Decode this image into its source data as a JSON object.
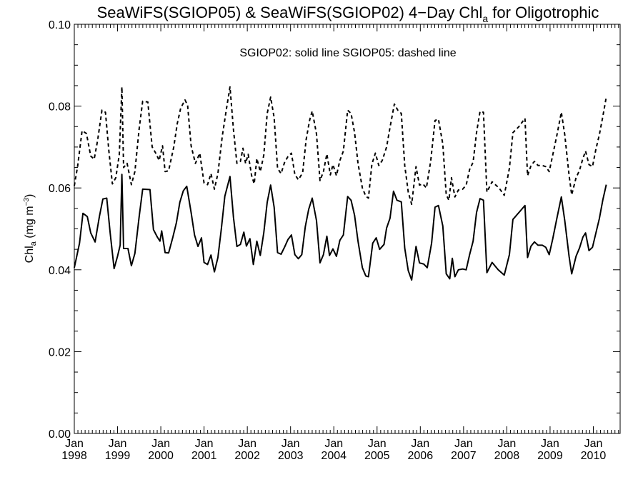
{
  "chart_data": {
    "type": "line",
    "title_main": "SeaWiFS(SGIOP05) & SeaWiFS(SGIOP02) 4−Day Chl",
    "title_sub": "a",
    "title_tail": " for Oligotrophic",
    "ylabel_main": "Chl",
    "ylabel_sub": "a",
    "ylabel_units": " (mg m",
    "ylabel_sup": "−3",
    "ylabel_close": ")",
    "annotation": "SGIOP02: solid line   SGIOP05: dashed line",
    "x_month_label": "Jan",
    "x_year_labels": [
      "1998",
      "1999",
      "2000",
      "2001",
      "2002",
      "2003",
      "2004",
      "2005",
      "2006",
      "2007",
      "2008",
      "2009",
      "2010"
    ],
    "y_tick_labels": [
      "0.00",
      "0.02",
      "0.04",
      "0.06",
      "0.08",
      "0.10"
    ],
    "xlim": [
      1998.0,
      2010.62
    ],
    "ylim": [
      0.0,
      0.1
    ],
    "series": [
      {
        "style": "solid",
        "points": [
          [
            1998.0,
            0.0405
          ],
          [
            1998.12,
            0.0465
          ],
          [
            1998.2,
            0.0538
          ],
          [
            1998.3,
            0.053
          ],
          [
            1998.38,
            0.049
          ],
          [
            1998.48,
            0.0468
          ],
          [
            1998.58,
            0.053
          ],
          [
            1998.66,
            0.0573
          ],
          [
            1998.75,
            0.0575
          ],
          [
            1998.83,
            0.049
          ],
          [
            1998.92,
            0.0403
          ],
          [
            1999.0,
            0.0433
          ],
          [
            1999.06,
            0.046
          ],
          [
            1999.1,
            0.0633
          ],
          [
            1999.14,
            0.0452
          ],
          [
            1999.24,
            0.0452
          ],
          [
            1999.32,
            0.041
          ],
          [
            1999.4,
            0.044
          ],
          [
            1999.5,
            0.053
          ],
          [
            1999.58,
            0.0597
          ],
          [
            1999.75,
            0.0596
          ],
          [
            1999.83,
            0.0498
          ],
          [
            1999.92,
            0.048
          ],
          [
            1999.98,
            0.047
          ],
          [
            2000.02,
            0.0495
          ],
          [
            2000.1,
            0.0442
          ],
          [
            2000.18,
            0.0441
          ],
          [
            2000.28,
            0.048
          ],
          [
            2000.36,
            0.0515
          ],
          [
            2000.44,
            0.0565
          ],
          [
            2000.52,
            0.0593
          ],
          [
            2000.6,
            0.0604
          ],
          [
            2000.7,
            0.054
          ],
          [
            2000.78,
            0.0485
          ],
          [
            2000.86,
            0.0457
          ],
          [
            2000.94,
            0.0478
          ],
          [
            2001.0,
            0.0418
          ],
          [
            2001.08,
            0.0413
          ],
          [
            2001.16,
            0.0436
          ],
          [
            2001.24,
            0.0395
          ],
          [
            2001.32,
            0.043
          ],
          [
            2001.4,
            0.05
          ],
          [
            2001.48,
            0.058
          ],
          [
            2001.6,
            0.0628
          ],
          [
            2001.68,
            0.0528
          ],
          [
            2001.76,
            0.0457
          ],
          [
            2001.84,
            0.0462
          ],
          [
            2001.92,
            0.0492
          ],
          [
            2001.98,
            0.0458
          ],
          [
            2002.06,
            0.0476
          ],
          [
            2002.14,
            0.0413
          ],
          [
            2002.22,
            0.047
          ],
          [
            2002.3,
            0.0435
          ],
          [
            2002.38,
            0.049
          ],
          [
            2002.46,
            0.0565
          ],
          [
            2002.54,
            0.0607
          ],
          [
            2002.62,
            0.0553
          ],
          [
            2002.7,
            0.0442
          ],
          [
            2002.78,
            0.0438
          ],
          [
            2002.86,
            0.0455
          ],
          [
            2002.94,
            0.0474
          ],
          [
            2003.02,
            0.0485
          ],
          [
            2003.1,
            0.0437
          ],
          [
            2003.18,
            0.0427
          ],
          [
            2003.26,
            0.0437
          ],
          [
            2003.34,
            0.0505
          ],
          [
            2003.42,
            0.0548
          ],
          [
            2003.5,
            0.0575
          ],
          [
            2003.6,
            0.052
          ],
          [
            2003.68,
            0.0417
          ],
          [
            2003.76,
            0.0437
          ],
          [
            2003.84,
            0.0482
          ],
          [
            2003.9,
            0.0435
          ],
          [
            2003.98,
            0.0451
          ],
          [
            2004.06,
            0.0433
          ],
          [
            2004.14,
            0.0472
          ],
          [
            2004.22,
            0.0485
          ],
          [
            2004.32,
            0.0579
          ],
          [
            2004.4,
            0.057
          ],
          [
            2004.48,
            0.0533
          ],
          [
            2004.56,
            0.047
          ],
          [
            2004.66,
            0.0405
          ],
          [
            2004.74,
            0.0385
          ],
          [
            2004.8,
            0.0383
          ],
          [
            2004.9,
            0.0465
          ],
          [
            2004.98,
            0.0478
          ],
          [
            2005.06,
            0.045
          ],
          [
            2005.16,
            0.0462
          ],
          [
            2005.22,
            0.0502
          ],
          [
            2005.3,
            0.0526
          ],
          [
            2005.38,
            0.0592
          ],
          [
            2005.46,
            0.057
          ],
          [
            2005.56,
            0.0566
          ],
          [
            2005.64,
            0.0453
          ],
          [
            2005.72,
            0.0398
          ],
          [
            2005.8,
            0.0375
          ],
          [
            2005.9,
            0.0457
          ],
          [
            2005.98,
            0.0417
          ],
          [
            2006.08,
            0.0414
          ],
          [
            2006.16,
            0.0405
          ],
          [
            2006.26,
            0.0465
          ],
          [
            2006.34,
            0.0553
          ],
          [
            2006.42,
            0.0557
          ],
          [
            2006.52,
            0.0507
          ],
          [
            2006.6,
            0.039
          ],
          [
            2006.68,
            0.0378
          ],
          [
            2006.74,
            0.0428
          ],
          [
            2006.8,
            0.0383
          ],
          [
            2006.88,
            0.04
          ],
          [
            2006.98,
            0.0402
          ],
          [
            2007.06,
            0.04
          ],
          [
            2007.14,
            0.0437
          ],
          [
            2007.22,
            0.047
          ],
          [
            2007.3,
            0.054
          ],
          [
            2007.38,
            0.0574
          ],
          [
            2007.46,
            0.057
          ],
          [
            2007.54,
            0.0393
          ],
          [
            2007.66,
            0.0418
          ],
          [
            2007.8,
            0.04
          ],
          [
            2007.94,
            0.0387
          ],
          [
            2008.06,
            0.0437
          ],
          [
            2008.14,
            0.0523
          ],
          [
            2008.28,
            0.054
          ],
          [
            2008.42,
            0.0557
          ],
          [
            2008.48,
            0.043
          ],
          [
            2008.56,
            0.0458
          ],
          [
            2008.64,
            0.0468
          ],
          [
            2008.72,
            0.046
          ],
          [
            2008.82,
            0.046
          ],
          [
            2008.9,
            0.0455
          ],
          [
            2008.98,
            0.0437
          ],
          [
            2009.06,
            0.0475
          ],
          [
            2009.16,
            0.0527
          ],
          [
            2009.26,
            0.0578
          ],
          [
            2009.34,
            0.052
          ],
          [
            2009.44,
            0.0432
          ],
          [
            2009.5,
            0.039
          ],
          [
            2009.6,
            0.0433
          ],
          [
            2009.68,
            0.0453
          ],
          [
            2009.76,
            0.048
          ],
          [
            2009.82,
            0.049
          ],
          [
            2009.9,
            0.0447
          ],
          [
            2009.98,
            0.0455
          ],
          [
            2010.06,
            0.049
          ],
          [
            2010.14,
            0.0525
          ],
          [
            2010.22,
            0.0571
          ],
          [
            2010.3,
            0.0608
          ]
        ]
      },
      {
        "style": "dashed",
        "points": [
          [
            1998.0,
            0.0605
          ],
          [
            1998.08,
            0.0655
          ],
          [
            1998.18,
            0.074
          ],
          [
            1998.28,
            0.0733
          ],
          [
            1998.38,
            0.0678
          ],
          [
            1998.46,
            0.067
          ],
          [
            1998.54,
            0.0717
          ],
          [
            1998.64,
            0.079
          ],
          [
            1998.72,
            0.0785
          ],
          [
            1998.8,
            0.069
          ],
          [
            1998.88,
            0.061
          ],
          [
            1998.96,
            0.0625
          ],
          [
            1999.04,
            0.0682
          ],
          [
            1999.1,
            0.0847
          ],
          [
            1999.14,
            0.065
          ],
          [
            1999.22,
            0.066
          ],
          [
            1999.32,
            0.0608
          ],
          [
            1999.4,
            0.064
          ],
          [
            1999.5,
            0.0745
          ],
          [
            1999.58,
            0.0812
          ],
          [
            1999.7,
            0.081
          ],
          [
            1999.8,
            0.07
          ],
          [
            1999.9,
            0.0682
          ],
          [
            1999.96,
            0.0667
          ],
          [
            2000.04,
            0.0703
          ],
          [
            2000.1,
            0.064
          ],
          [
            2000.18,
            0.0642
          ],
          [
            2000.3,
            0.07
          ],
          [
            2000.38,
            0.0757
          ],
          [
            2000.46,
            0.0795
          ],
          [
            2000.56,
            0.0815
          ],
          [
            2000.62,
            0.0802
          ],
          [
            2000.7,
            0.0703
          ],
          [
            2000.8,
            0.066
          ],
          [
            2000.9,
            0.0685
          ],
          [
            2001.0,
            0.0612
          ],
          [
            2001.08,
            0.0608
          ],
          [
            2001.16,
            0.0635
          ],
          [
            2001.24,
            0.0597
          ],
          [
            2001.32,
            0.0635
          ],
          [
            2001.42,
            0.0725
          ],
          [
            2001.52,
            0.0795
          ],
          [
            2001.6,
            0.0847
          ],
          [
            2001.68,
            0.0742
          ],
          [
            2001.76,
            0.066
          ],
          [
            2001.84,
            0.0665
          ],
          [
            2001.9,
            0.0697
          ],
          [
            2001.96,
            0.066
          ],
          [
            2002.02,
            0.0682
          ],
          [
            2002.1,
            0.063
          ],
          [
            2002.16,
            0.061
          ],
          [
            2002.22,
            0.0672
          ],
          [
            2002.3,
            0.064
          ],
          [
            2002.38,
            0.068
          ],
          [
            2002.46,
            0.0782
          ],
          [
            2002.54,
            0.0822
          ],
          [
            2002.62,
            0.0772
          ],
          [
            2002.7,
            0.0648
          ],
          [
            2002.78,
            0.0635
          ],
          [
            2002.86,
            0.0662
          ],
          [
            2002.94,
            0.0677
          ],
          [
            2003.02,
            0.0685
          ],
          [
            2003.1,
            0.0633
          ],
          [
            2003.18,
            0.062
          ],
          [
            2003.28,
            0.0637
          ],
          [
            2003.36,
            0.0718
          ],
          [
            2003.44,
            0.0765
          ],
          [
            2003.5,
            0.0788
          ],
          [
            2003.6,
            0.0732
          ],
          [
            2003.68,
            0.0618
          ],
          [
            2003.76,
            0.064
          ],
          [
            2003.84,
            0.0683
          ],
          [
            2003.92,
            0.0632
          ],
          [
            2003.98,
            0.0657
          ],
          [
            2004.06,
            0.063
          ],
          [
            2004.14,
            0.0667
          ],
          [
            2004.22,
            0.069
          ],
          [
            2004.32,
            0.079
          ],
          [
            2004.4,
            0.0782
          ],
          [
            2004.48,
            0.0735
          ],
          [
            2004.56,
            0.066
          ],
          [
            2004.66,
            0.06
          ],
          [
            2004.74,
            0.058
          ],
          [
            2004.8,
            0.0575
          ],
          [
            2004.88,
            0.0658
          ],
          [
            2004.96,
            0.0685
          ],
          [
            2005.04,
            0.0655
          ],
          [
            2005.12,
            0.0667
          ],
          [
            2005.22,
            0.07
          ],
          [
            2005.3,
            0.0748
          ],
          [
            2005.4,
            0.0805
          ],
          [
            2005.48,
            0.079
          ],
          [
            2005.56,
            0.0782
          ],
          [
            2005.64,
            0.0655
          ],
          [
            2005.72,
            0.059
          ],
          [
            2005.8,
            0.056
          ],
          [
            2005.9,
            0.0652
          ],
          [
            2005.98,
            0.0607
          ],
          [
            2006.06,
            0.061
          ],
          [
            2006.14,
            0.06
          ],
          [
            2006.24,
            0.0665
          ],
          [
            2006.34,
            0.0765
          ],
          [
            2006.42,
            0.0768
          ],
          [
            2006.52,
            0.0707
          ],
          [
            2006.6,
            0.0583
          ],
          [
            2006.66,
            0.057
          ],
          [
            2006.72,
            0.0625
          ],
          [
            2006.8,
            0.0578
          ],
          [
            2006.88,
            0.0595
          ],
          [
            2006.98,
            0.0597
          ],
          [
            2007.06,
            0.0607
          ],
          [
            2007.14,
            0.0645
          ],
          [
            2007.22,
            0.0663
          ],
          [
            2007.3,
            0.0735
          ],
          [
            2007.38,
            0.0787
          ],
          [
            2007.46,
            0.0785
          ],
          [
            2007.54,
            0.059
          ],
          [
            2007.66,
            0.0615
          ],
          [
            2007.82,
            0.06
          ],
          [
            2007.94,
            0.0582
          ],
          [
            2008.06,
            0.0648
          ],
          [
            2008.14,
            0.0735
          ],
          [
            2008.28,
            0.075
          ],
          [
            2008.42,
            0.077
          ],
          [
            2008.48,
            0.063
          ],
          [
            2008.56,
            0.0655
          ],
          [
            2008.64,
            0.0665
          ],
          [
            2008.72,
            0.0655
          ],
          [
            2008.82,
            0.0655
          ],
          [
            2008.9,
            0.0652
          ],
          [
            2008.98,
            0.064
          ],
          [
            2009.06,
            0.068
          ],
          [
            2009.16,
            0.073
          ],
          [
            2009.26,
            0.0785
          ],
          [
            2009.34,
            0.073
          ],
          [
            2009.44,
            0.063
          ],
          [
            2009.5,
            0.0583
          ],
          [
            2009.6,
            0.0625
          ],
          [
            2009.68,
            0.0643
          ],
          [
            2009.76,
            0.0672
          ],
          [
            2009.82,
            0.069
          ],
          [
            2009.9,
            0.0657
          ],
          [
            2009.98,
            0.0652
          ],
          [
            2010.06,
            0.0695
          ],
          [
            2010.14,
            0.073
          ],
          [
            2010.22,
            0.0775
          ],
          [
            2010.3,
            0.0822
          ]
        ]
      }
    ]
  }
}
